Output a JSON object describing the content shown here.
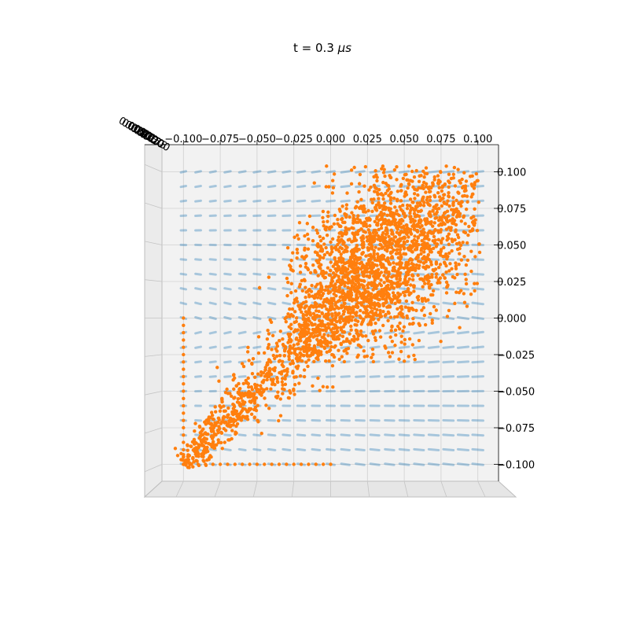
{
  "chart_data": {
    "type": "scatter",
    "title_prefix": "t = 0.3 ",
    "title_unit": "μs",
    "projection": "3d",
    "view": "top-down",
    "grid": true,
    "x_ticks": [
      "−0.100",
      "−0.075",
      "−0.050",
      "−0.025",
      "0.000",
      "0.025",
      "0.050",
      "0.075",
      "0.100"
    ],
    "x_tick_values": [
      -0.1,
      -0.075,
      -0.05,
      -0.025,
      0.0,
      0.025,
      0.05,
      0.075,
      0.1
    ],
    "y_ticks": [
      "0.100",
      "0.075",
      "0.050",
      "0.025",
      "0.000",
      "−0.025",
      "−0.050",
      "−0.075",
      "−0.100"
    ],
    "y_tick_values": [
      0.1,
      0.075,
      0.05,
      0.025,
      0.0,
      -0.025,
      -0.05,
      -0.075,
      -0.1
    ],
    "z_ticks": [
      "0.000",
      "0.025",
      "0.050",
      "0.075",
      "0.100",
      "0.125",
      "0.150",
      "0.175",
      "0.200"
    ],
    "xlim": [
      -0.11,
      0.11
    ],
    "ylim": [
      -0.11,
      0.11
    ],
    "series": [
      {
        "color": "#1f77b4",
        "description": "regular 3D grid of field points",
        "grid_spacing": 0.01,
        "range": [
          -0.1,
          0.1
        ],
        "alpha": 0.35
      },
      {
        "color": "#ff7f0e",
        "description": "particle cloud elongated along the diagonal",
        "edge_row": {
          "y": -0.1,
          "x_range": [
            -0.1,
            0.0
          ]
        },
        "edge_col": {
          "x": -0.1,
          "y_range": [
            -0.1,
            0.0
          ]
        },
        "core": {
          "center": [
            0.03,
            0.03
          ],
          "extent": [
            -0.1,
            0.1
          ]
        }
      }
    ]
  }
}
